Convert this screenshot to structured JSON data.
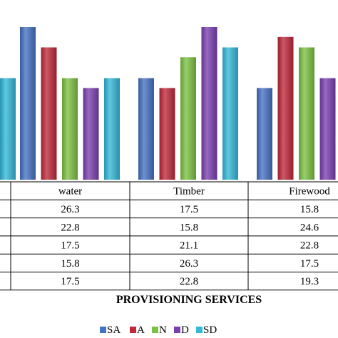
{
  "chart_data": {
    "type": "bar",
    "title": "",
    "xlabel": "PROVISIONING SERVICES",
    "ylabel": "",
    "categories": [
      "",
      "water",
      "Timber",
      "Firewood"
    ],
    "series": [
      {
        "name": "SA",
        "values": [
          null,
          26.3,
          17.5,
          15.8
        ],
        "color": "#4472C4"
      },
      {
        "name": "A",
        "values": [
          null,
          22.8,
          15.8,
          24.6
        ],
        "color": "#C0283A"
      },
      {
        "name": "N",
        "values": [
          null,
          17.5,
          21.1,
          22.8
        ],
        "color": "#7CC242"
      },
      {
        "name": "D",
        "values": [
          null,
          15.8,
          26.3,
          17.5
        ],
        "color": "#7B3FB0"
      },
      {
        "name": "SD",
        "values": [
          17.5,
          17.5,
          22.8,
          19.3
        ],
        "color": "#33B8D8"
      }
    ],
    "ylim": [
      0,
      26.3
    ],
    "grid": false,
    "legend_position": "bottom"
  }
}
